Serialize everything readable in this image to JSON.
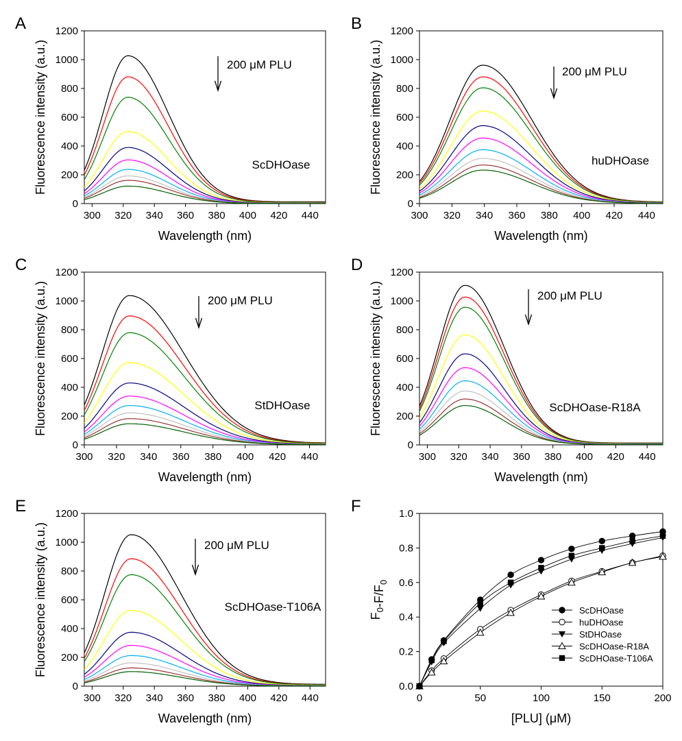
{
  "figure": {
    "spectra_ylabel": "Fluorescence intensity (a.u.)",
    "spectra_xlabel": "Wavelength (nm)",
    "arrow_label": "200 μM PLU",
    "series_colors": [
      "#000000",
      "#ff0000",
      "#008000",
      "#ffff00",
      "#000080",
      "#ff00ff",
      "#00b0f0",
      "#c0c0c0",
      "#993333",
      "#006000"
    ],
    "panel_letters": [
      "A",
      "B",
      "C",
      "D",
      "E",
      "F"
    ]
  },
  "chart_data": [
    {
      "panel": "A",
      "type": "line",
      "title": "ScDHOase",
      "xlabel": "Wavelength (nm)",
      "ylabel": "Fluorescence intensity (a.u.)",
      "xlim": [
        295,
        450
      ],
      "ylim": [
        0,
        1200
      ],
      "xticks": [
        300,
        320,
        340,
        360,
        380,
        400,
        420,
        440
      ],
      "yticks": [
        0,
        200,
        400,
        600,
        800,
        1000,
        1200
      ],
      "annotation": "200 μM PLU",
      "arrow": "down",
      "peak_wavelength": 323,
      "width_left": 16,
      "width_right": 26,
      "start_ratio": 0.3,
      "series_peaks": [
        1015,
        870,
        730,
        495,
        385,
        300,
        235,
        190,
        160,
        120
      ]
    },
    {
      "panel": "B",
      "type": "line",
      "title": "huDHOase",
      "xlabel": "Wavelength (nm)",
      "ylabel": "Fluorescence intensity (a.u.)",
      "xlim": [
        300,
        450
      ],
      "ylim": [
        0,
        1200
      ],
      "xticks": [
        300,
        320,
        340,
        360,
        380,
        400,
        420,
        440
      ],
      "yticks": [
        0,
        200,
        400,
        600,
        800,
        1000,
        1200
      ],
      "annotation": "200 μM PLU",
      "arrow": "down",
      "peak_wavelength": 339,
      "width_left": 20,
      "width_right": 30,
      "start_ratio": 0.1,
      "series_peaks": [
        950,
        870,
        795,
        635,
        535,
        450,
        370,
        310,
        265,
        230
      ]
    },
    {
      "panel": "C",
      "type": "line",
      "title": "StDHOase",
      "xlabel": "Wavelength (nm)",
      "ylabel": "Fluorescence intensity (a.u.)",
      "xlim": [
        300,
        450
      ],
      "ylim": [
        0,
        1200
      ],
      "xticks": [
        300,
        320,
        340,
        360,
        380,
        400,
        420,
        440
      ],
      "yticks": [
        0,
        200,
        400,
        600,
        800,
        1000,
        1200
      ],
      "annotation": "200 μM PLU",
      "arrow": "down",
      "peak_wavelength": 328,
      "width_left": 17,
      "width_right": 34,
      "start_ratio": 0.38,
      "series_peaks": [
        1025,
        885,
        770,
        565,
        425,
        335,
        270,
        220,
        180,
        145
      ]
    },
    {
      "panel": "D",
      "type": "line",
      "title": "ScDHOase-R18A",
      "xlabel": "Wavelength (nm)",
      "ylabel": "Fluorescence intensity (a.u.)",
      "xlim": [
        295,
        450
      ],
      "ylim": [
        0,
        1200
      ],
      "xticks": [
        300,
        320,
        340,
        360,
        380,
        400,
        420,
        440
      ],
      "yticks": [
        0,
        200,
        400,
        600,
        800,
        1000,
        1200
      ],
      "annotation": "200 μM PLU",
      "arrow": "down",
      "peak_wavelength": 324,
      "width_left": 17,
      "width_right": 25,
      "start_ratio": 0.3,
      "series_peaks": [
        1095,
        1015,
        945,
        755,
        625,
        530,
        440,
        370,
        315,
        270
      ]
    },
    {
      "panel": "E",
      "type": "line",
      "title": "ScDHOase-T106A",
      "xlabel": "Wavelength (nm)",
      "ylabel": "Fluorescence intensity (a.u.)",
      "xlim": [
        295,
        450
      ],
      "ylim": [
        0,
        1200
      ],
      "xticks": [
        300,
        320,
        340,
        360,
        380,
        400,
        420,
        440
      ],
      "yticks": [
        0,
        200,
        400,
        600,
        800,
        1000,
        1200
      ],
      "annotation": "200 μM PLU",
      "arrow": "down",
      "peak_wavelength": 325,
      "width_left": 17,
      "width_right": 32,
      "start_ratio": 0.3,
      "series_peaks": [
        1040,
        875,
        765,
        520,
        370,
        280,
        210,
        160,
        125,
        100
      ]
    },
    {
      "panel": "F",
      "type": "scatter",
      "xlabel": "[PLU] (μM)",
      "ylabel": "F0-F/F0",
      "xlim": [
        0,
        200
      ],
      "ylim": [
        0,
        1.0
      ],
      "xticks": [
        0,
        50,
        100,
        150,
        200
      ],
      "yticks": [
        0.0,
        0.2,
        0.4,
        0.6,
        0.8,
        1.0
      ],
      "legend_position": "bottom-right",
      "x": [
        0,
        10,
        20,
        50,
        75,
        100,
        125,
        150,
        175,
        200
      ],
      "series": [
        {
          "name": "ScDHOase",
          "marker": "circle-filled",
          "values": [
            0,
            0.155,
            0.265,
            0.5,
            0.645,
            0.73,
            0.795,
            0.84,
            0.87,
            0.895
          ]
        },
        {
          "name": "huDHOase",
          "marker": "circle-open",
          "values": [
            0,
            0.09,
            0.16,
            0.33,
            0.44,
            0.53,
            0.61,
            0.665,
            0.715,
            0.755
          ]
        },
        {
          "name": "StDHOase",
          "marker": "triangle-down-filled",
          "values": [
            0,
            0.14,
            0.25,
            0.45,
            0.585,
            0.665,
            0.735,
            0.785,
            0.825,
            0.86
          ]
        },
        {
          "name": "ScDHOase-R18A",
          "marker": "triangle-up-open",
          "values": [
            0,
            0.08,
            0.145,
            0.31,
            0.425,
            0.52,
            0.6,
            0.66,
            0.715,
            0.75
          ]
        },
        {
          "name": "ScDHOase-T106A",
          "marker": "square-filled",
          "values": [
            0,
            0.15,
            0.26,
            0.48,
            0.6,
            0.685,
            0.755,
            0.8,
            0.84,
            0.87
          ]
        }
      ]
    }
  ]
}
